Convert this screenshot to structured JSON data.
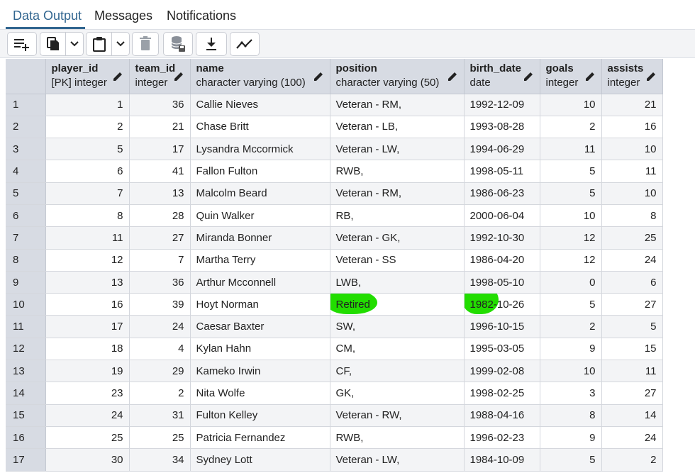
{
  "tabs": [
    {
      "label": "Data Output",
      "active": true
    },
    {
      "label": "Messages",
      "active": false
    },
    {
      "label": "Notifications",
      "active": false
    }
  ],
  "toolbar": {
    "buttons": [
      "add-row-icon",
      "copy-icon",
      "chevron-down-icon",
      "paste-icon",
      "chevron-down-icon",
      "delete-icon",
      "save-data-icon",
      "download-icon",
      "graph-icon"
    ]
  },
  "colors": {
    "accent": "#326690",
    "highlight": "#22dd00",
    "header_bg": "#d7dbe3"
  },
  "columns": [
    {
      "name": "player_id",
      "type": "[PK] integer"
    },
    {
      "name": "team_id",
      "type": "integer"
    },
    {
      "name": "name",
      "type": "character varying (100)"
    },
    {
      "name": "position",
      "type": "character varying (50)"
    },
    {
      "name": "birth_date",
      "type": "date"
    },
    {
      "name": "goals",
      "type": "integer"
    },
    {
      "name": "assists",
      "type": "integer"
    }
  ],
  "rows": [
    [
      "1",
      "1",
      "36",
      "Callie Nieves",
      "Veteran - RM,",
      "1992-12-09",
      "10",
      "21"
    ],
    [
      "2",
      "2",
      "21",
      "Chase Britt",
      "Veteran - LB,",
      "1993-08-28",
      "2",
      "16"
    ],
    [
      "3",
      "5",
      "17",
      "Lysandra Mccormick",
      "Veteran - LW,",
      "1994-06-29",
      "11",
      "10"
    ],
    [
      "4",
      "6",
      "41",
      "Fallon Fulton",
      "RWB,",
      "1998-05-11",
      "5",
      "11"
    ],
    [
      "5",
      "7",
      "13",
      "Malcolm Beard",
      "Veteran - RM,",
      "1986-06-23",
      "5",
      "10"
    ],
    [
      "6",
      "8",
      "28",
      "Quin Walker",
      "RB,",
      "2000-06-04",
      "10",
      "8"
    ],
    [
      "7",
      "11",
      "27",
      "Miranda Bonner",
      "Veteran - GK,",
      "1992-10-30",
      "12",
      "25"
    ],
    [
      "8",
      "12",
      "7",
      "Martha Terry",
      "Veteran - SS",
      "1986-04-20",
      "12",
      "24"
    ],
    [
      "9",
      "13",
      "36",
      "Arthur Mcconnell",
      "LWB,",
      "1998-05-10",
      "0",
      "6"
    ],
    [
      "10",
      "16",
      "39",
      "Hoyt Norman",
      "Retired",
      "1982-10-26",
      "5",
      "27"
    ],
    [
      "11",
      "17",
      "24",
      "Caesar Baxter",
      "SW,",
      "1996-10-15",
      "2",
      "5"
    ],
    [
      "12",
      "18",
      "4",
      "Kylan Hahn",
      "CM,",
      "1995-03-05",
      "9",
      "15"
    ],
    [
      "13",
      "19",
      "29",
      "Kameko Irwin",
      "CF,",
      "1999-02-08",
      "10",
      "11"
    ],
    [
      "14",
      "23",
      "2",
      "Nita Wolfe",
      "GK,",
      "1998-02-25",
      "3",
      "27"
    ],
    [
      "15",
      "24",
      "31",
      "Fulton Kelley",
      "Veteran - RW,",
      "1988-04-16",
      "8",
      "14"
    ],
    [
      "16",
      "25",
      "25",
      "Patricia Fernandez",
      "RWB,",
      "1996-02-23",
      "9",
      "24"
    ],
    [
      "17",
      "30",
      "34",
      "Sydney Lott",
      "Veteran - LW,",
      "1984-10-09",
      "5",
      "2"
    ]
  ]
}
